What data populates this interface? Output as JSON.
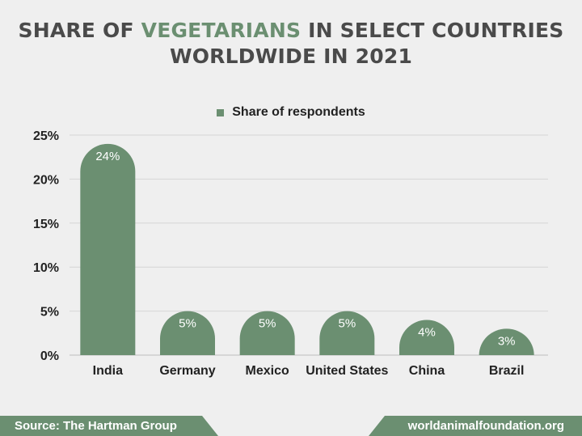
{
  "title": {
    "part1": "SHARE OF",
    "accent": "VEGETARIANS",
    "part2": "IN SELECT COUNTRIES",
    "line2": "WORLDWIDE IN 2021"
  },
  "colors": {
    "bar": "#6b8f71",
    "title": "#4a4a4a",
    "accent": "#6b8f71",
    "grid": "#d6d6d6"
  },
  "footer": {
    "source": "Source: The Hartman Group",
    "site": "worldanimalfoundation.org"
  },
  "chart_data": {
    "type": "bar",
    "categories": [
      "India",
      "Germany",
      "Mexico",
      "United States",
      "China",
      "Brazil"
    ],
    "series": [
      {
        "name": "Share of respondents",
        "values": [
          24,
          5,
          5,
          5,
          4,
          3
        ]
      }
    ],
    "data_labels": [
      "24%",
      "5%",
      "5%",
      "5%",
      "4%",
      "3%"
    ],
    "yticks": [
      "0%",
      "5%",
      "10%",
      "15%",
      "20%",
      "25%"
    ],
    "ylim": [
      0,
      25
    ],
    "grid": true,
    "legend": "top-center"
  }
}
